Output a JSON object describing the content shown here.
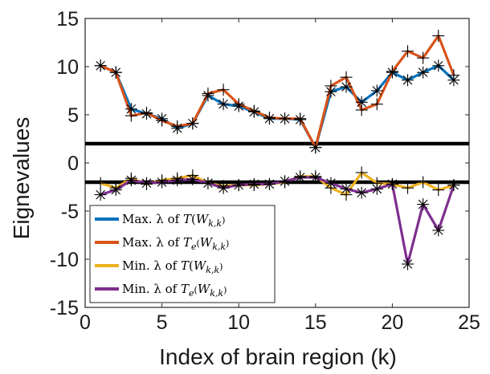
{
  "chart_data": {
    "type": "line",
    "title": "",
    "xlabel": "Index of brain region (k)",
    "ylabel": "Eignevalues",
    "xlim": [
      0,
      25
    ],
    "ylim": [
      -15,
      15
    ],
    "x_ticks": [
      0,
      5,
      10,
      15,
      20,
      25
    ],
    "y_ticks": [
      -15,
      -10,
      -5,
      0,
      5,
      10,
      15
    ],
    "grid": false,
    "legend_position": "bottom-left",
    "reference_lines": [
      2,
      -2
    ],
    "x": [
      1,
      2,
      3,
      4,
      5,
      6,
      7,
      8,
      9,
      10,
      11,
      12,
      13,
      14,
      15,
      16,
      17,
      18,
      19,
      20,
      21,
      22,
      23,
      24
    ],
    "series": [
      {
        "name": "Max. λ of T(W_{k,k})",
        "legend_parts": [
          "Max.  λ of ",
          "T",
          "(",
          "W",
          "k,k",
          ")"
        ],
        "color": "#0072BD",
        "marker": "asterisk",
        "values": [
          10.1,
          9.4,
          5.6,
          5.1,
          4.6,
          3.6,
          4.1,
          7.0,
          6.1,
          5.9,
          5.3,
          4.6,
          4.6,
          4.5,
          1.6,
          7.4,
          7.9,
          6.3,
          7.5,
          9.4,
          8.6,
          9.4,
          10.1,
          8.6
        ]
      },
      {
        "name": "Max. λ of T_e(W_{k,k})",
        "legend_parts": [
          "Max.  λ of ",
          "T",
          "e",
          "(",
          "W",
          "k,k",
          ")"
        ],
        "color": "#D95319",
        "marker": "plus",
        "values": [
          10.1,
          9.4,
          4.9,
          5.2,
          4.4,
          3.8,
          4.1,
          7.2,
          7.6,
          6.1,
          5.4,
          4.7,
          4.6,
          4.6,
          1.6,
          8.0,
          8.9,
          5.5,
          6.1,
          9.5,
          11.6,
          10.9,
          13.2,
          9.1
        ]
      },
      {
        "name": "Min. λ of T(W_{k,k})",
        "legend_parts": [
          "Min.  λ of ",
          "T",
          "(",
          "W",
          "k,k",
          ")"
        ],
        "color": "#EDB120",
        "marker": "plus",
        "values": [
          -2.1,
          -2.6,
          -1.6,
          -2.2,
          -1.8,
          -1.6,
          -1.3,
          -2.1,
          -2.4,
          -2.3,
          -2.3,
          -2.2,
          -2.0,
          -1.4,
          -1.4,
          -2.6,
          -3.3,
          -1.0,
          -2.1,
          -2.2,
          -2.6,
          -2.0,
          -2.8,
          -2.3
        ]
      },
      {
        "name": "Min. λ of T_e(W_{k,k})",
        "legend_parts": [
          "Min.  λ of ",
          "T",
          "e",
          "(",
          "W",
          "k,k",
          ")"
        ],
        "color": "#7E2F8E",
        "marker": "asterisk",
        "values": [
          -3.3,
          -2.8,
          -1.8,
          -2.1,
          -2.0,
          -1.8,
          -1.7,
          -2.1,
          -2.6,
          -2.3,
          -2.2,
          -2.2,
          -1.9,
          -1.5,
          -1.5,
          -2.1,
          -2.7,
          -3.1,
          -2.7,
          -2.2,
          -10.5,
          -4.3,
          -7.0,
          -2.3
        ]
      }
    ]
  }
}
